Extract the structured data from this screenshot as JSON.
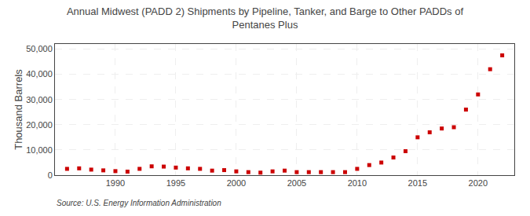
{
  "chart_data": {
    "type": "scatter",
    "title": "Annual Midwest (PADD 2) Shipments by Pipeline, Tanker, and Barge to Other PADDs of\nPentanes Plus",
    "ylabel": "Thousand Barrels",
    "source": "Source: U.S. Energy Information Administration",
    "x": [
      1986,
      1987,
      1988,
      1989,
      1990,
      1991,
      1992,
      1993,
      1994,
      1995,
      1996,
      1997,
      1998,
      1999,
      2000,
      2001,
      2002,
      2003,
      2004,
      2005,
      2006,
      2007,
      2008,
      2009,
      2010,
      2011,
      2012,
      2013,
      2014,
      2015,
      2016,
      2017,
      2018,
      2019,
      2020,
      2021,
      2022
    ],
    "values": [
      2500,
      2700,
      2200,
      1900,
      1600,
      1400,
      2500,
      3500,
      3400,
      3000,
      2700,
      2500,
      1800,
      2000,
      1500,
      1200,
      1000,
      1500,
      1800,
      1200,
      1200,
      1200,
      1200,
      1200,
      2500,
      4000,
      5000,
      7000,
      9500,
      15000,
      17000,
      18500,
      19000,
      26000,
      32000,
      42000,
      47500
    ],
    "color": "#cc0000",
    "marker": "square",
    "xlim": [
      1985,
      2023
    ],
    "ylim": [
      0,
      52000
    ],
    "xticks": [
      1990,
      1995,
      2000,
      2005,
      2010,
      2015,
      2020
    ],
    "yticks": [
      0,
      {
        "value": 10000,
        "label": "10,000"
      },
      {
        "value": 20000,
        "label": "20,000"
      },
      {
        "value": 30000,
        "label": "30,000"
      },
      {
        "value": 40000,
        "label": "40,000"
      },
      {
        "value": 50000,
        "label": "50,000"
      }
    ],
    "grid": true
  }
}
